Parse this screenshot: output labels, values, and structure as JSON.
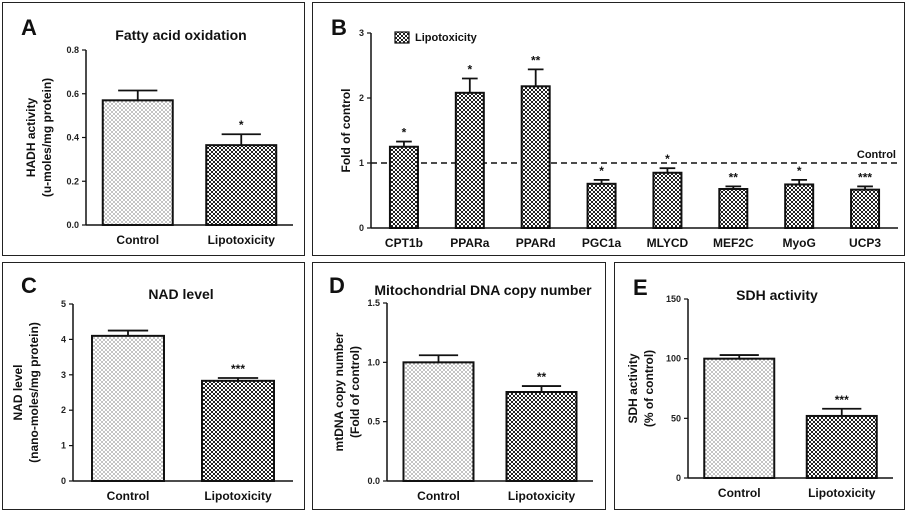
{
  "patterns": {
    "Control": "dots",
    "Lipotoxicity": "checker"
  },
  "chart_data": [
    {
      "id": "A",
      "panel_label": "A",
      "type": "bar",
      "title": "Fatty acid oxidation",
      "ylabel_lines": [
        "HADH activity",
        "(u-moles/mg protein)"
      ],
      "ylim": [
        0,
        0.8
      ],
      "yticks": [
        0,
        0.2,
        0.4,
        0.6,
        0.8
      ],
      "ytick_labels": [
        "0.0",
        "0.2",
        "0.4",
        "0.6",
        "0.8"
      ],
      "categories": [
        "Control",
        "Lipotoxicity"
      ],
      "values": [
        0.57,
        0.365
      ],
      "errors": [
        0.045,
        0.05
      ],
      "significance": [
        "",
        "*"
      ]
    },
    {
      "id": "B",
      "panel_label": "B",
      "type": "bar",
      "title": "",
      "ylabel_lines": [
        "Fold of control"
      ],
      "ylim": [
        0,
        3
      ],
      "yticks": [
        0,
        1,
        2,
        3
      ],
      "ytick_labels": [
        "0",
        "1",
        "2",
        "3"
      ],
      "categories": [
        "CPT1b",
        "PPARa",
        "PPARd",
        "PGC1a",
        "MLYCD",
        "MEF2C",
        "MyoG",
        "UCP3"
      ],
      "values": [
        1.25,
        2.08,
        2.18,
        0.68,
        0.85,
        0.6,
        0.67,
        0.59
      ],
      "errors": [
        0.08,
        0.22,
        0.26,
        0.06,
        0.07,
        0.04,
        0.07,
        0.05
      ],
      "significance": [
        "*",
        "*",
        "**",
        "*",
        "*",
        "**",
        "*",
        "***"
      ],
      "legend": [
        "Lipotoxicity"
      ],
      "legend_position": "top-left",
      "reference_line": {
        "value": 1,
        "label": "Control",
        "style": "dashed"
      }
    },
    {
      "id": "C",
      "panel_label": "C",
      "type": "bar",
      "title": "NAD level",
      "ylabel_lines": [
        "NAD level",
        "(nano-moles/mg protein)"
      ],
      "ylim": [
        0,
        5
      ],
      "yticks": [
        0,
        1,
        2,
        3,
        4,
        5
      ],
      "ytick_labels": [
        "0",
        "1",
        "2",
        "3",
        "4",
        "5"
      ],
      "categories": [
        "Control",
        "Lipotoxicity"
      ],
      "values": [
        4.1,
        2.83
      ],
      "errors": [
        0.15,
        0.08
      ],
      "significance": [
        "",
        "***"
      ]
    },
    {
      "id": "D",
      "panel_label": "D",
      "type": "bar",
      "title": "Mitochondrial DNA copy number",
      "ylabel_lines": [
        "mtDNA copy number",
        "(Fold of control)"
      ],
      "ylim": [
        0,
        1.5
      ],
      "yticks": [
        0,
        0.5,
        1.0,
        1.5
      ],
      "ytick_labels": [
        "0.0",
        "0.5",
        "1.0",
        "1.5"
      ],
      "categories": [
        "Control",
        "Lipotoxicity"
      ],
      "values": [
        1.0,
        0.75
      ],
      "errors": [
        0.06,
        0.05
      ],
      "significance": [
        "",
        "**"
      ]
    },
    {
      "id": "E",
      "panel_label": "E",
      "type": "bar",
      "title": "SDH activity",
      "ylabel_lines": [
        "SDH activity",
        "(% of control)"
      ],
      "ylim": [
        0,
        150
      ],
      "yticks": [
        0,
        50,
        100,
        150
      ],
      "ytick_labels": [
        "0",
        "50",
        "100",
        "150"
      ],
      "categories": [
        "Control",
        "Lipotoxicity"
      ],
      "values": [
        100,
        52
      ],
      "errors": [
        3,
        6
      ],
      "significance": [
        "",
        "***"
      ]
    }
  ]
}
